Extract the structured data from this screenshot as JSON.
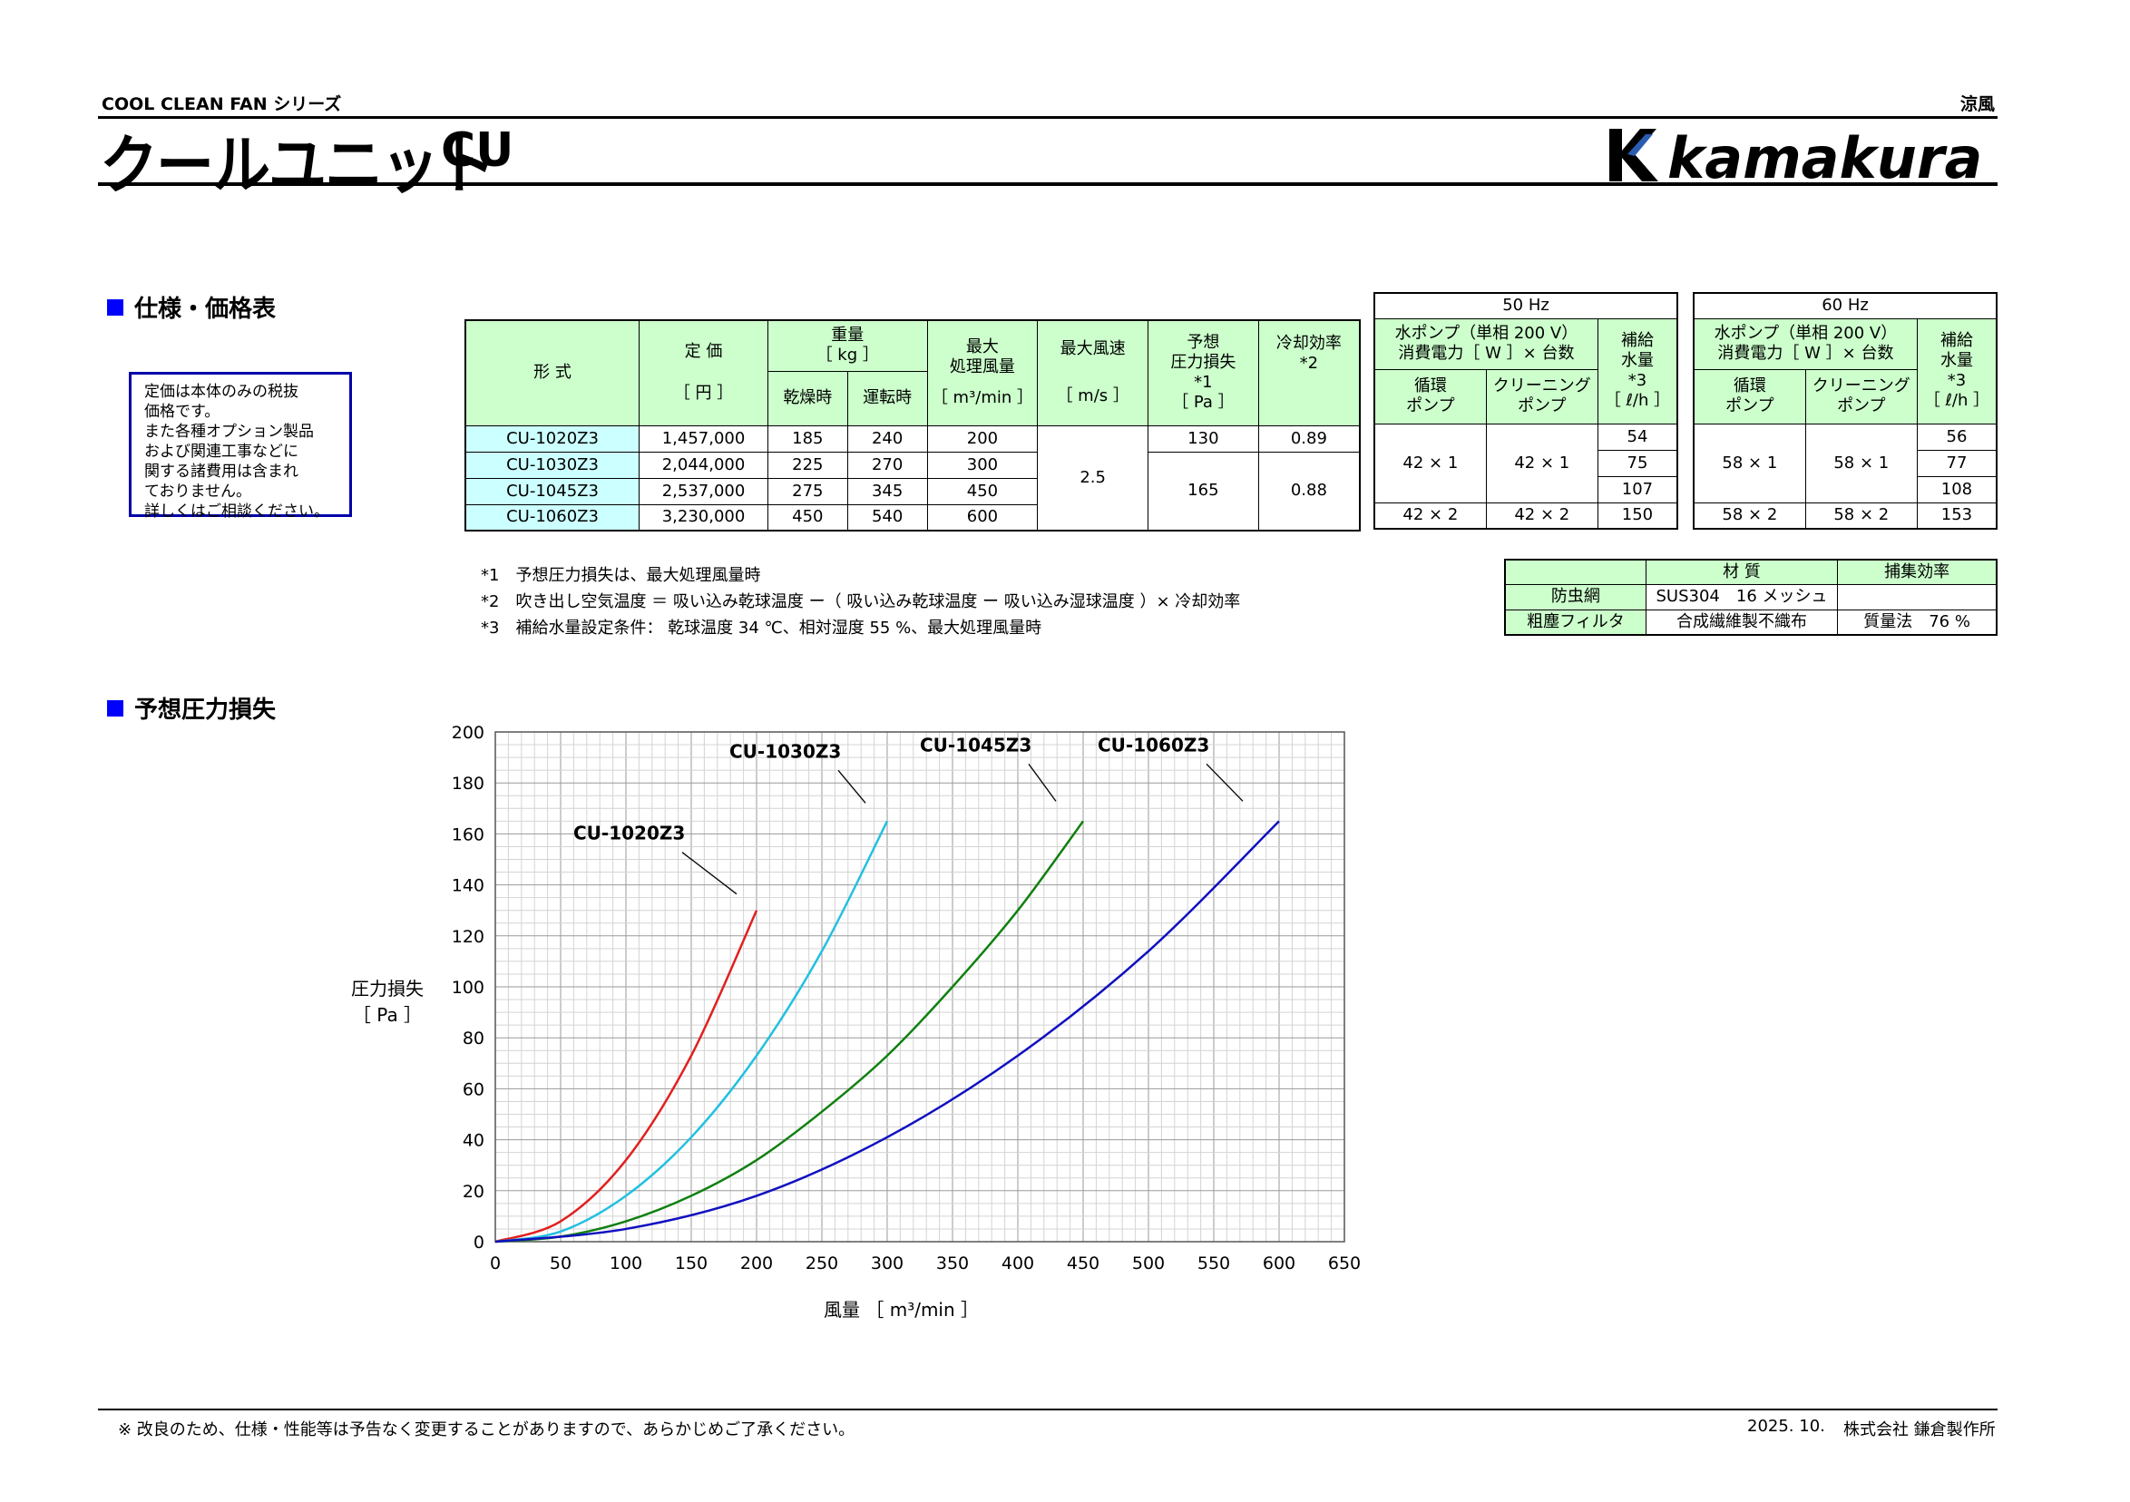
{
  "header": {
    "series": "COOL CLEAN FAN シリーズ",
    "brand_right": "涼風",
    "title": "クールユニット",
    "model": "CU",
    "logo_text": "kamakura"
  },
  "spec_section": {
    "heading": "仕様・価格表",
    "note_lines": [
      "定価は本体のみの税抜",
      "価格です。",
      "また各種オプション製品",
      "および関連工事などに",
      "関する諸費用は含まれ",
      "ておりません。",
      "詳しくはご相談ください。"
    ],
    "col_headers": {
      "model": "形 式",
      "price": "定 価",
      "price_unit": "［ 円 ］",
      "weight": "重量",
      "weight_unit": "［ kg ］",
      "dry": "乾燥時",
      "operating": "運転時",
      "max_flow_1": "最大",
      "max_flow_2": "処理風量",
      "max_flow_unit": "［ m³/min ］",
      "max_speed": "最大風速",
      "max_speed_unit": "［ m/s ］",
      "pressure_1": "予想",
      "pressure_2": "圧力損失",
      "pressure_3": "*1",
      "pressure_unit": "［ Pa ］",
      "cooling_1": "冷却効率",
      "cooling_2": "*2",
      "hz50": "50 Hz",
      "hz60": "60 Hz",
      "pump_1": "水ポンプ（単相 200 V）",
      "pump_2": "消費電力［ W ］× 台数",
      "circ_1": "循環",
      "circ_2": "ポンプ",
      "clean_1": "クリーニング",
      "clean_2": "ポンプ",
      "supply_1": "補給",
      "supply_2": "水量",
      "supply_3": "*3",
      "supply_unit": "［ ℓ/h ］"
    },
    "rows": [
      {
        "model": "CU-1020Z3",
        "price": "1,457,000",
        "dry": "185",
        "op": "240",
        "flow": "200",
        "pressure": "130",
        "cool": "0.89",
        "s50": "54",
        "s60": "56"
      },
      {
        "model": "CU-1030Z3",
        "price": "2,044,000",
        "dry": "225",
        "op": "270",
        "flow": "300",
        "s50": "75",
        "s60": "77"
      },
      {
        "model": "CU-1045Z3",
        "price": "2,537,000",
        "dry": "275",
        "op": "345",
        "flow": "450",
        "s50": "107",
        "s60": "108"
      },
      {
        "model": "CU-1060Z3",
        "price": "3,230,000",
        "dry": "450",
        "op": "540",
        "flow": "600",
        "s50": "150",
        "s60": "153"
      }
    ],
    "merged": {
      "speed": "2.5",
      "pressure_b": "165",
      "cool_b": "0.88",
      "p50_a_circ": "42 × 1",
      "p50_a_clean": "42 × 1",
      "p50_b_circ": "42 × 2",
      "p50_b_clean": "42 × 2",
      "p60_a_circ": "58 × 1",
      "p60_a_clean": "58 × 1",
      "p60_b_circ": "58 × 2",
      "p60_b_clean": "58 × 2"
    },
    "footnotes": [
      "*1　予想圧力損失は、最大処理風量時",
      "*2　吹き出し空気温度 ＝ 吸い込み乾球温度 ー（ 吸い込み乾球温度 ー 吸い込み湿球温度 ）× 冷却効率",
      "*3　補給水量設定条件： 乾球温度 34 ℃、相対湿度 55 %、最大処理風量時"
    ],
    "material_table": {
      "h_material": "材 質",
      "h_eff": "捕集効率",
      "rows": [
        {
          "name": "防虫網",
          "material": "SUS304　16 メッシュ",
          "eff": ""
        },
        {
          "name": "粗塵フィルタ",
          "material": "合成繊維製不織布",
          "eff": "質量法　76 %"
        }
      ]
    }
  },
  "chart_section": {
    "heading": "予想圧力損失"
  },
  "chart_data": {
    "type": "line",
    "ylabel": "圧力損失",
    "ylabel_unit": "［ Pa ］",
    "xlabel": "風量 ［ m³/min ］",
    "xlim": [
      0,
      650
    ],
    "ylim": [
      0,
      200
    ],
    "xticks": [
      0,
      50,
      100,
      150,
      200,
      250,
      300,
      350,
      400,
      450,
      500,
      550,
      600,
      650
    ],
    "yticks": [
      0,
      20,
      40,
      60,
      80,
      100,
      120,
      140,
      160,
      180,
      200
    ],
    "grid": true,
    "series": [
      {
        "name": "CU-1020Z3",
        "color": "#e02020",
        "x": [
          0,
          50,
          100,
          150,
          200
        ],
        "y": [
          0,
          8,
          32,
          73,
          130
        ]
      },
      {
        "name": "CU-1030Z3",
        "color": "#22c0e0",
        "x": [
          0,
          50,
          100,
          150,
          200,
          250,
          300
        ],
        "y": [
          0,
          4,
          18,
          41,
          73,
          114,
          165
        ]
      },
      {
        "name": "CU-1045Z3",
        "color": "#108010",
        "x": [
          0,
          50,
          100,
          150,
          200,
          250,
          300,
          350,
          400,
          450
        ],
        "y": [
          0,
          2,
          8,
          18,
          32,
          51,
          73,
          100,
          130,
          165
        ]
      },
      {
        "name": "CU-1060Z3",
        "color": "#1010c0",
        "x": [
          0,
          100,
          200,
          300,
          400,
          500,
          600
        ],
        "y": [
          0,
          5,
          18,
          41,
          73,
          114,
          165
        ]
      }
    ]
  },
  "footer": {
    "note": "※ 改良のため、仕様・性能等は予告なく変更することがありますので、あらかじめご了承ください。",
    "date": "2025. 10.",
    "company": "株式会社 鎌倉製作所"
  }
}
